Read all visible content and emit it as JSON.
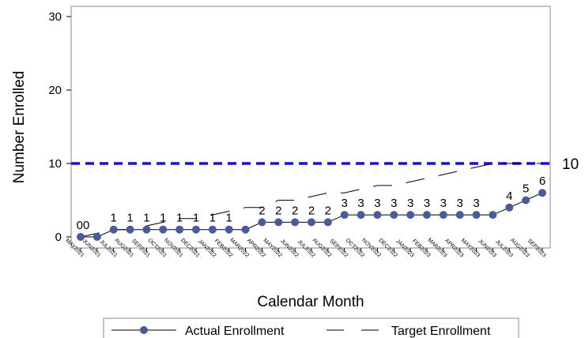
{
  "chart_data": {
    "type": "line",
    "xlabel": "Calendar Month",
    "ylabel": "Number Enrolled",
    "ylim": [
      0,
      30
    ],
    "yticks": [
      0,
      10,
      20,
      30
    ],
    "categories": [
      "MAY2021",
      "JUN2021",
      "JUL2021",
      "AUG2021",
      "SEP2021",
      "OCT2021",
      "NOV2021",
      "DEC2021",
      "JAN2022",
      "FEB2022",
      "MAR2022",
      "APR2022",
      "MAY2022",
      "JUN2022",
      "JUL2022",
      "AUG2022",
      "SEP2022",
      "OCT2022",
      "NOV2022",
      "DEC2022",
      "JAN2023",
      "FEB2023",
      "MAR2023",
      "APR2023",
      "MAY2023",
      "JUN2023",
      "JUL2023",
      "AUG2023",
      "SEP2023"
    ],
    "series": [
      {
        "name": "Actual Enrollment",
        "style": "solid-line-with-markers",
        "color": "#4a5a9a",
        "values": [
          0,
          0,
          1,
          1,
          1,
          1,
          1,
          1,
          1,
          1,
          1,
          2,
          2,
          2,
          2,
          2,
          3,
          3,
          3,
          3,
          3,
          3,
          3,
          3,
          3,
          3,
          4,
          5,
          6
        ],
        "labels": [
          "00",
          "",
          "1",
          "1",
          "1",
          "1",
          "1",
          "1",
          "1",
          "1",
          "",
          "2",
          "2",
          "2",
          "2",
          "2",
          "3",
          "3",
          "3",
          "3",
          "3",
          "3",
          "3",
          "3",
          "3",
          "",
          "4",
          "5",
          "6"
        ]
      },
      {
        "name": "Target Enrollment",
        "style": "long-dash",
        "color": "#000000",
        "values": [
          0,
          0.5,
          1,
          1,
          1.5,
          2,
          2.5,
          2.5,
          3,
          3.5,
          4,
          4,
          5,
          5,
          5.5,
          6,
          6,
          6.5,
          7,
          7,
          7.5,
          8,
          8.5,
          9,
          9.5,
          10,
          10,
          10,
          10
        ]
      }
    ],
    "reference_line": {
      "value": 10,
      "label": "10",
      "color": "#1414c8",
      "style": "dashed"
    },
    "legend": {
      "position": "bottom"
    },
    "grid": false
  }
}
